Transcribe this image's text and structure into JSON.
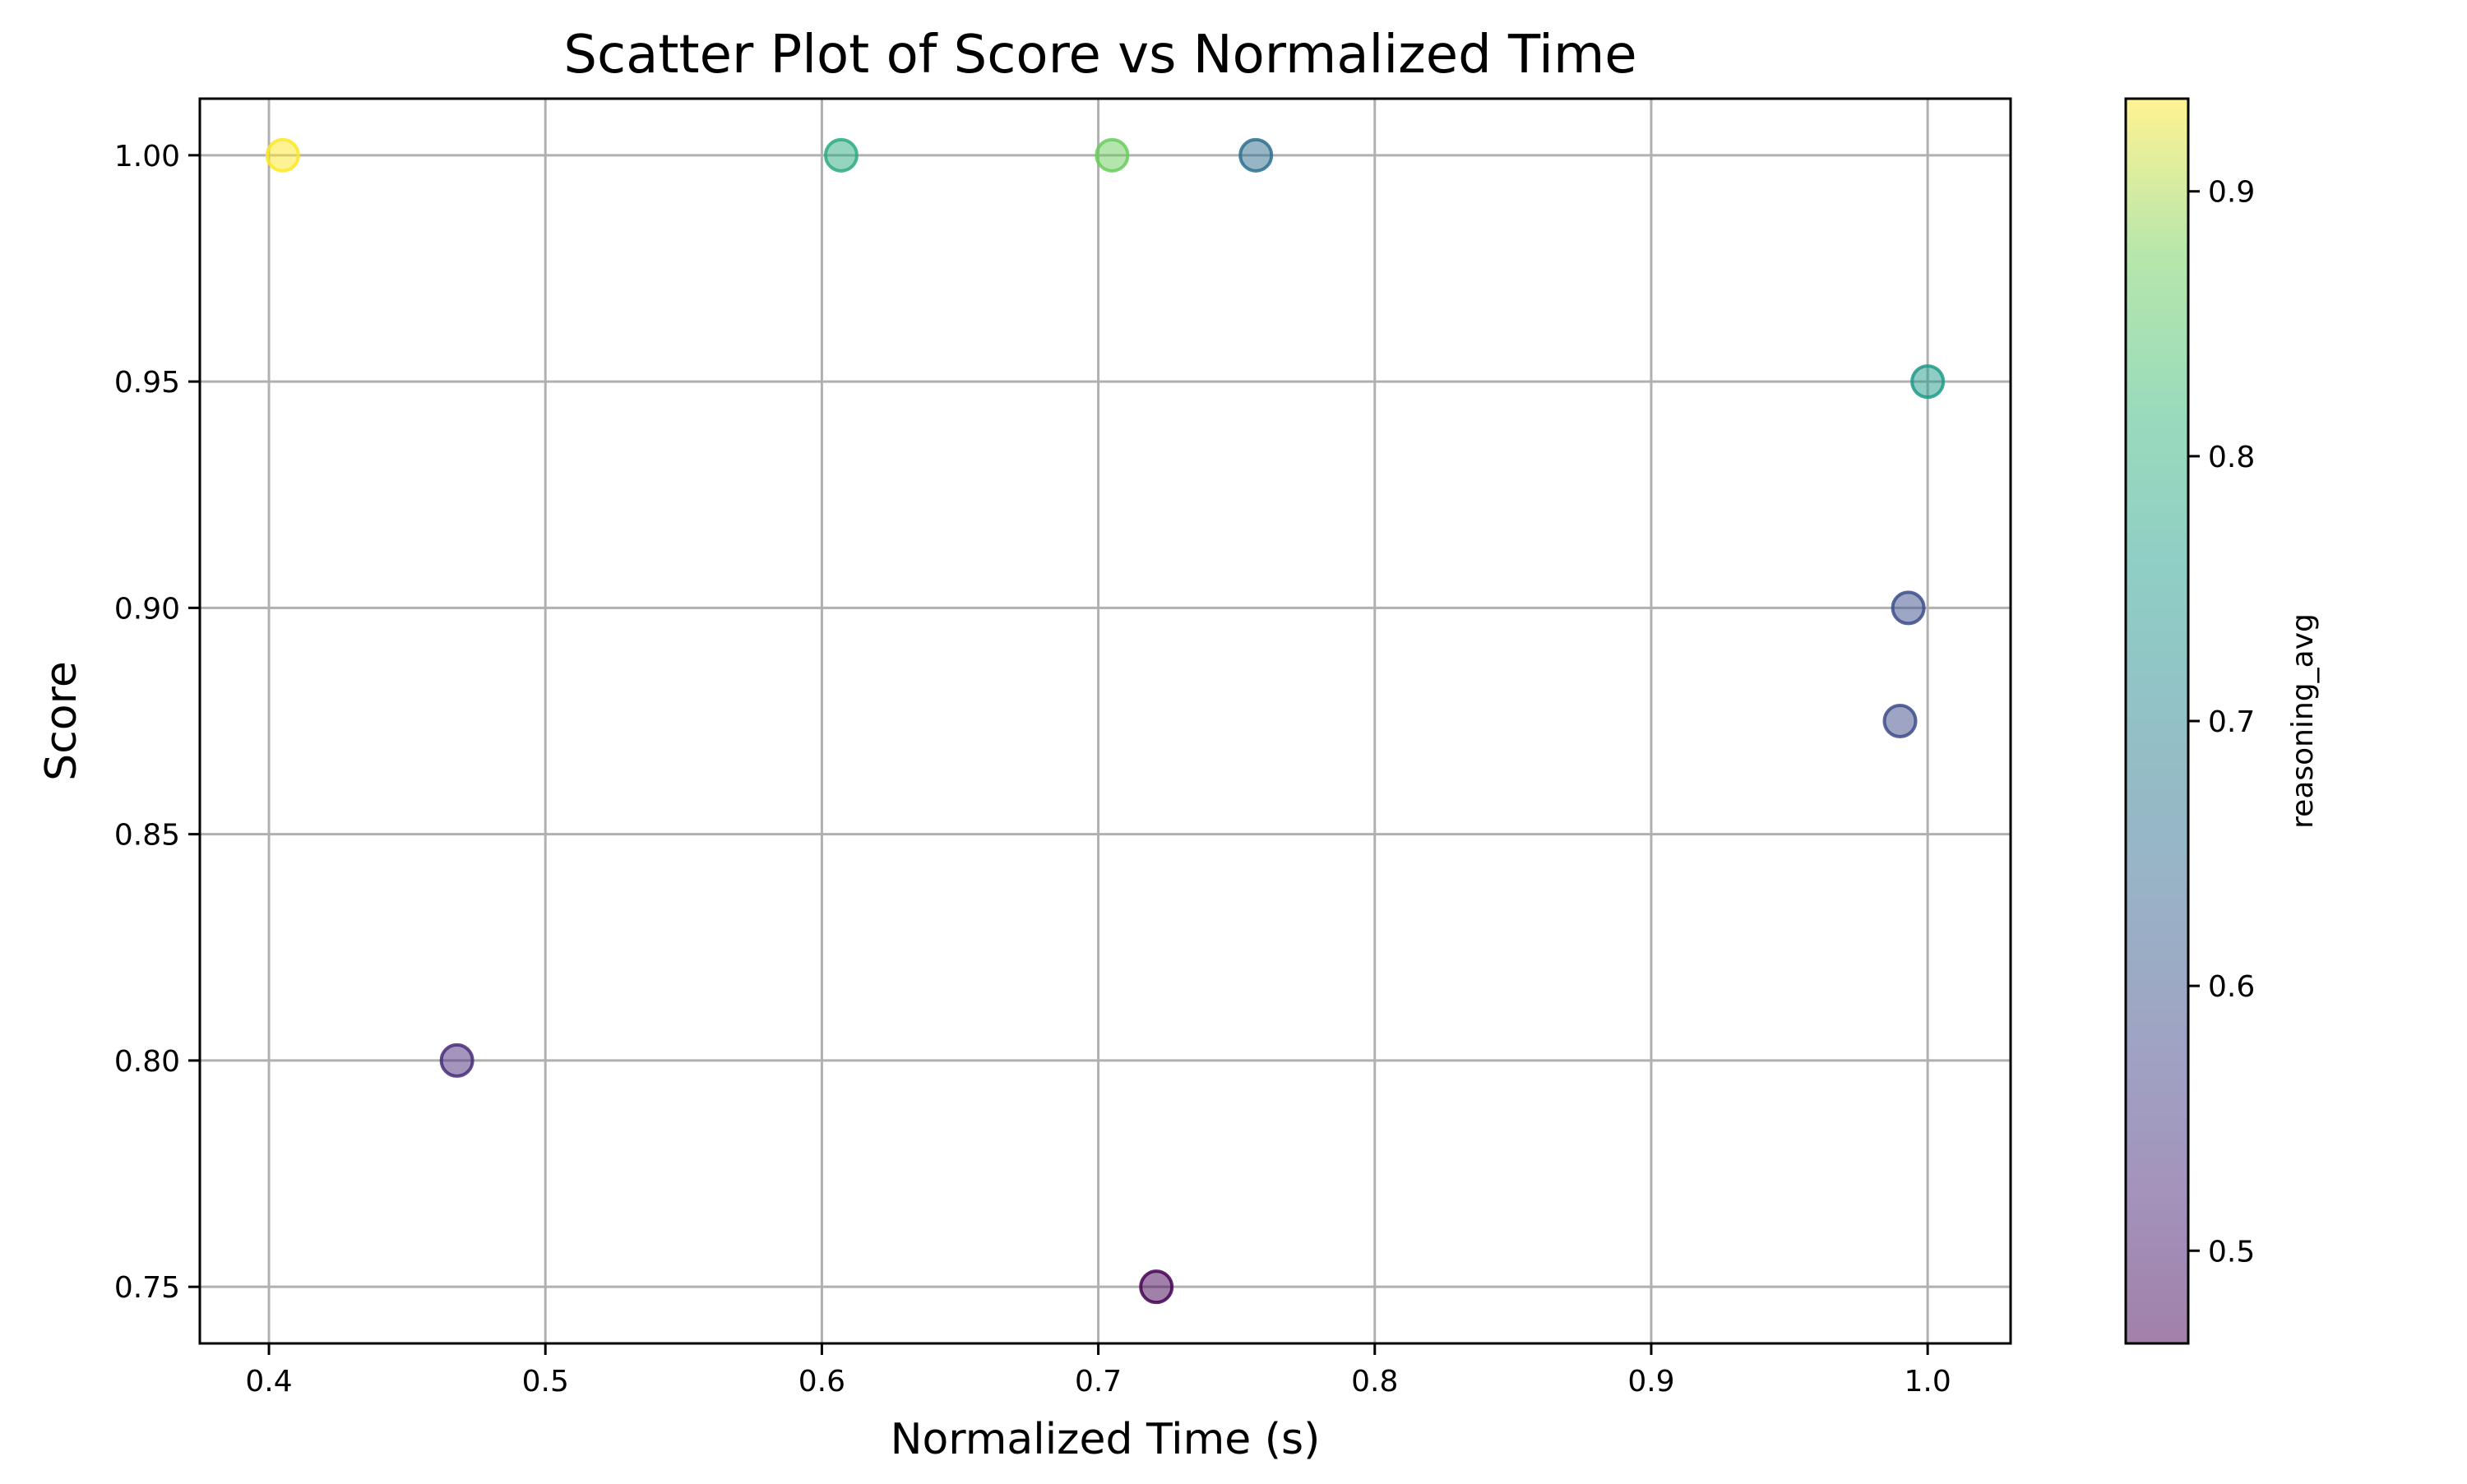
{
  "chart_data": {
    "type": "scatter",
    "title": "Scatter Plot of Score vs Normalized Time",
    "xlabel": "Normalized Time (s)",
    "ylabel": "Score",
    "xlim": [
      0.375,
      1.03
    ],
    "ylim": [
      0.7375,
      1.0125
    ],
    "xticks": [
      0.4,
      0.5,
      0.6,
      0.7,
      0.8,
      0.9,
      1.0
    ],
    "xtick_labels": [
      "0.4",
      "0.5",
      "0.6",
      "0.7",
      "0.8",
      "0.9",
      "1.0"
    ],
    "yticks": [
      0.75,
      0.8,
      0.85,
      0.9,
      0.95,
      1.0
    ],
    "ytick_labels": [
      "0.75",
      "0.80",
      "0.85",
      "0.90",
      "0.95",
      "1.00"
    ],
    "grid": true,
    "colormap": "viridis",
    "marker_alpha": 0.5,
    "colorbar": {
      "label": "reasoning_avg",
      "range": [
        0.465,
        0.935
      ],
      "ticks": [
        0.5,
        0.6,
        0.7,
        0.8,
        0.9
      ],
      "tick_labels": [
        "0.5",
        "0.6",
        "0.7",
        "0.8",
        "0.9"
      ]
    },
    "points": [
      {
        "x": 0.405,
        "y": 1.0,
        "c": 0.935
      },
      {
        "x": 0.607,
        "y": 1.0,
        "c": 0.79
      },
      {
        "x": 0.705,
        "y": 1.0,
        "c": 0.87
      },
      {
        "x": 0.757,
        "y": 1.0,
        "c": 0.655
      },
      {
        "x": 1.0,
        "y": 0.95,
        "c": 0.75
      },
      {
        "x": 0.993,
        "y": 0.9,
        "c": 0.59
      },
      {
        "x": 0.99,
        "y": 0.875,
        "c": 0.585
      },
      {
        "x": 0.468,
        "y": 0.8,
        "c": 0.53
      },
      {
        "x": 0.721,
        "y": 0.75,
        "c": 0.465
      }
    ]
  }
}
